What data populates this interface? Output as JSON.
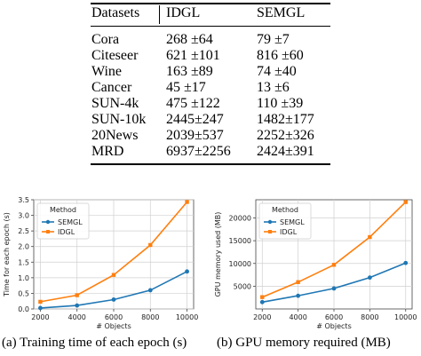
{
  "table": {
    "headers": [
      "Datasets",
      "IDGL",
      "SEMGL"
    ],
    "rows": [
      [
        "Cora",
        "268 ±64",
        "79 ±7"
      ],
      [
        "Citeseer",
        "621 ±101",
        "816 ±60"
      ],
      [
        "Wine",
        "163 ±89",
        "74 ±40"
      ],
      [
        "Cancer",
        "45 ±17",
        "13 ±6"
      ],
      [
        "SUN-4k",
        "475 ±122",
        "110 ±39"
      ],
      [
        "SUN-10k",
        "2445±247",
        "1482±177"
      ],
      [
        "20News",
        "2039±537",
        "2252±326"
      ],
      [
        "MRD",
        "6937±2256",
        "2424±391"
      ]
    ]
  },
  "chart_data": [
    {
      "type": "line",
      "xlabel": "# Objects",
      "ylabel": "Time for each epoch (s)",
      "x": [
        2000,
        4000,
        6000,
        8000,
        10000
      ],
      "xticks": [
        "2000",
        "4000",
        "6000",
        "8000",
        "10000"
      ],
      "ylim": [
        0,
        3.5
      ],
      "yticks": [
        "0.0",
        "0.5",
        "1.0",
        "1.5",
        "2.0",
        "2.5",
        "3.0",
        "3.5"
      ],
      "grid": true,
      "legend": {
        "title": "Method",
        "placement": "top-left"
      },
      "series": [
        {
          "name": "SEMGL",
          "color": "#1f77b4",
          "values": [
            0.03,
            0.11,
            0.3,
            0.6,
            1.2
          ]
        },
        {
          "name": "IDGL",
          "color": "#ff7f0e",
          "values": [
            0.23,
            0.44,
            1.09,
            2.05,
            3.43
          ]
        }
      ],
      "caption": "(a) Training time of each epoch (s)"
    },
    {
      "type": "line",
      "xlabel": "# Objects",
      "ylabel": "GPU memory used (MB)",
      "x": [
        2000,
        4000,
        6000,
        8000,
        10000
      ],
      "xticks": [
        "2000",
        "4000",
        "6000",
        "8000",
        "10000"
      ],
      "ylim": [
        0,
        24000
      ],
      "yticks": [
        "5000",
        "10000",
        "15000",
        "20000"
      ],
      "grid": true,
      "legend": {
        "title": "Method",
        "placement": "top-left"
      },
      "series": [
        {
          "name": "SEMGL",
          "color": "#1f77b4",
          "values": [
            1500,
            2900,
            4500,
            6900,
            10100
          ]
        },
        {
          "name": "IDGL",
          "color": "#ff7f0e",
          "values": [
            2600,
            5900,
            9700,
            15800,
            23500
          ]
        }
      ],
      "caption": "(b) GPU memory required (MB)"
    }
  ]
}
